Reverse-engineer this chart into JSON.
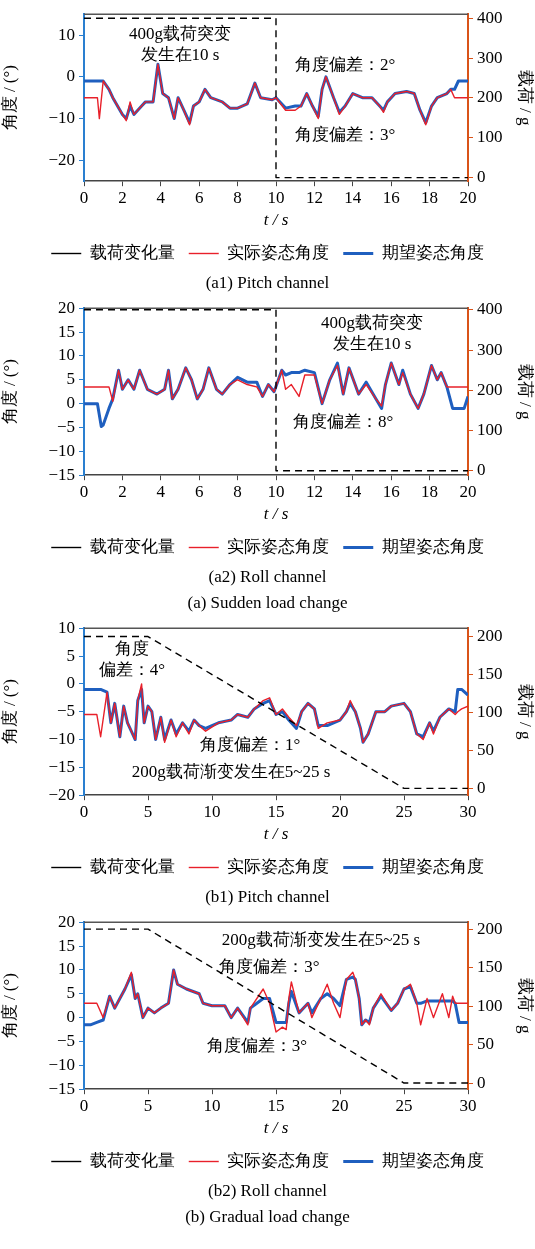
{
  "chart_data": [
    {
      "type": "line",
      "title": "(a1) Pitch channel",
      "xlabel": "t / s",
      "ylabel": "角度 / (°)",
      "y2label": "载荷 / g",
      "legend": "bottom",
      "xlim": [
        0,
        20
      ],
      "xticks": [
        0,
        2,
        4,
        6,
        8,
        10,
        12,
        14,
        16,
        18,
        20
      ],
      "ylim": [
        -25,
        15
      ],
      "yticks": [
        -20,
        -10,
        0,
        10
      ],
      "y2lim": [
        -9,
        410
      ],
      "y2ticks": [
        0,
        100,
        200,
        300,
        400
      ],
      "x": [
        0,
        0.7,
        0.8,
        1.0,
        1.3,
        1.5,
        2.0,
        2.2,
        2.4,
        2.6,
        3.0,
        3.2,
        3.6,
        3.85,
        4.1,
        4.4,
        4.7,
        4.9,
        5.2,
        5.5,
        5.7,
        6.0,
        6.3,
        6.6,
        7.2,
        7.6,
        8.0,
        8.5,
        8.9,
        9.2,
        9.8,
        10.0,
        10.5,
        11.0,
        11.3,
        11.6,
        11.9,
        12.2,
        12.4,
        12.6,
        13.0,
        13.3,
        13.6,
        14.0,
        14.5,
        15.0,
        15.4,
        15.6,
        15.8,
        16.2,
        16.8,
        17.2,
        17.5,
        17.8,
        18.1,
        18.4,
        18.9,
        19.1,
        19.3,
        19.5,
        20
      ],
      "series": [
        {
          "name": "期望姿态角度",
          "color": "#1f5fbf",
          "values": [
            -1,
            -1,
            -1,
            -1,
            -3,
            -5,
            -9,
            -10,
            -7,
            -9,
            -7,
            -6,
            -6,
            3,
            -4,
            -5,
            -10,
            -5,
            -8,
            -11,
            -7,
            -6,
            -3,
            -5,
            -6,
            -7.5,
            -7.5,
            -6.5,
            -1.5,
            -5,
            -5.5,
            -5,
            -7.5,
            -7,
            -7,
            -4,
            -7,
            -9.5,
            -3,
            0,
            -5,
            -8.5,
            -7,
            -4,
            -5,
            -5,
            -7,
            -8,
            -6,
            -4,
            -3.5,
            -4,
            -8,
            -11,
            -7,
            -5,
            -4,
            -3,
            -3,
            -1,
            -1
          ]
        },
        {
          "name": "实际姿态角度",
          "color": "#e8202a",
          "values": [
            -5,
            -5,
            -10,
            -1,
            -3,
            -5,
            -9,
            -10.5,
            -6,
            -9,
            -7,
            -6,
            -6,
            3,
            -4,
            -5,
            -10,
            -5,
            -8,
            -11.5,
            -7,
            -6,
            -3,
            -5,
            -6,
            -7.5,
            -7.5,
            -6.5,
            -1.5,
            -5,
            -5.5,
            -5,
            -8,
            -8,
            -7,
            -4,
            -7,
            -10,
            -3,
            0,
            -5,
            -9,
            -7,
            -4,
            -5,
            -5,
            -7,
            -8.5,
            -6,
            -4,
            -3.5,
            -4,
            -8,
            -11.5,
            -7,
            -5,
            -4,
            -3,
            -5,
            -5,
            -5
          ]
        },
        {
          "name": "载荷变化量",
          "color": "#000000",
          "axis": "y2",
          "line_style": "dashed",
          "x": [
            0,
            10,
            10,
            20
          ],
          "values": [
            400,
            400,
            0,
            0
          ]
        }
      ],
      "annotations": [
        "400g载荷突变发生在10 s",
        "角度偏差：2°",
        "角度偏差：3°"
      ]
    },
    {
      "type": "line",
      "title": "(a2) Roll channel",
      "xlabel": "t / s",
      "ylabel": "角度 / (°)",
      "y2label": "载荷 / g",
      "legend": "bottom",
      "xlim": [
        0,
        20
      ],
      "xticks": [
        0,
        2,
        4,
        6,
        8,
        10,
        12,
        14,
        16,
        18,
        20
      ],
      "ylim": [
        -15,
        20
      ],
      "yticks": [
        -15,
        -10,
        -5,
        0,
        5,
        10,
        15,
        20
      ],
      "y2lim": [
        -11,
        404
      ],
      "y2ticks": [
        0,
        100,
        200,
        300,
        400
      ],
      "x": [
        0,
        0.7,
        0.9,
        1.0,
        1.3,
        1.5,
        1.8,
        2.0,
        2.3,
        2.6,
        2.9,
        3.3,
        3.8,
        4.2,
        4.4,
        4.6,
        4.9,
        5.3,
        5.6,
        5.9,
        6.2,
        6.5,
        6.9,
        7.2,
        7.6,
        8.0,
        8.5,
        9.0,
        9.3,
        9.6,
        9.9,
        10.3,
        10.5,
        10.8,
        11.2,
        11.5,
        12.0,
        12.4,
        12.8,
        13.2,
        13.5,
        13.8,
        14.3,
        14.7,
        15.2,
        15.5,
        15.7,
        16.0,
        16.4,
        16.6,
        17.0,
        17.4,
        17.7,
        18.1,
        18.4,
        18.6,
        18.9,
        19.2,
        19.8,
        20
      ],
      "series": [
        {
          "name": "期望姿态角度",
          "color": "#1f5fbf",
          "values": [
            0,
            0,
            -4.8,
            -4.5,
            -1,
            1,
            7,
            3,
            5,
            3,
            7,
            3,
            2,
            3,
            7,
            1,
            3,
            7.5,
            5,
            1,
            3,
            7.5,
            3,
            2,
            4,
            5.5,
            4.5,
            4.5,
            1.5,
            4,
            2.5,
            7,
            6,
            6.5,
            6.5,
            7,
            6.5,
            0,
            5,
            8.5,
            2,
            7.5,
            2,
            4.5,
            1,
            -1,
            4,
            8.5,
            4,
            7,
            2,
            -1,
            2,
            8,
            5,
            6.5,
            3.5,
            -1,
            -1,
            1.5
          ]
        },
        {
          "name": "实际姿态角度",
          "color": "#e8202a",
          "values": [
            3.5,
            3.5,
            3.5,
            3.5,
            3.5,
            0.5,
            7,
            3,
            5,
            3,
            7,
            3,
            2,
            3,
            7,
            1,
            3,
            7.5,
            5,
            1,
            3,
            7.5,
            3,
            2,
            4,
            5,
            4,
            3.5,
            1.5,
            4,
            2.5,
            7,
            3,
            4,
            1.5,
            6,
            6,
            0,
            5,
            8,
            2,
            7.5,
            2,
            4,
            1,
            -0.5,
            4,
            8.5,
            4,
            6.5,
            2,
            -1,
            2,
            8,
            5,
            6.5,
            3.5,
            3.5,
            3.5,
            3.5
          ]
        },
        {
          "name": "载荷变化量",
          "color": "#000000",
          "axis": "y2",
          "line_style": "dashed",
          "x": [
            0,
            10,
            10,
            20
          ],
          "values": [
            400,
            400,
            0,
            0
          ]
        }
      ],
      "annotations": [
        "400g载荷突变发生在10 s",
        "角度偏差：8°",
        "(a) Sudden load change"
      ]
    },
    {
      "type": "line",
      "title": "(b1) Pitch channel",
      "xlabel": "t / s",
      "ylabel": "角度 / (°)",
      "y2label": "载荷 / g",
      "legend": "bottom",
      "xlim": [
        0,
        30
      ],
      "xticks": [
        0,
        5,
        10,
        15,
        20,
        25,
        30
      ],
      "ylim": [
        -20,
        10
      ],
      "yticks": [
        -20,
        -15,
        -10,
        -5,
        0,
        5,
        10
      ],
      "y2lim": [
        -9,
        211
      ],
      "y2ticks": [
        0,
        50,
        100,
        150,
        200
      ],
      "x": [
        0,
        1.0,
        1.3,
        1.8,
        2.1,
        2.4,
        2.8,
        3.1,
        3.4,
        4.0,
        4.2,
        4.5,
        4.7,
        5.0,
        5.3,
        5.6,
        6.0,
        6.3,
        6.8,
        7.2,
        7.7,
        8.2,
        8.6,
        9.0,
        9.5,
        10.5,
        11.5,
        12.0,
        12.8,
        13.3,
        14.0,
        14.5,
        15.0,
        15.5,
        16.0,
        16.6,
        17.0,
        17.5,
        18.0,
        18.3,
        19.0,
        20.0,
        20.5,
        20.8,
        21.2,
        21.6,
        21.8,
        22.2,
        22.8,
        23.5,
        24.0,
        25.0,
        25.5,
        26.0,
        26.5,
        27.0,
        27.3,
        27.8,
        28.5,
        29.0,
        29.2,
        29.5,
        30
      ],
      "series": [
        {
          "name": "期望姿态角度",
          "color": "#1f5fbf",
          "values": [
            -1,
            -1,
            -1,
            -1.5,
            -7,
            -3.5,
            -9.5,
            -4,
            -7,
            -10,
            -3,
            -1,
            -7,
            -4,
            -5,
            -10,
            -6,
            -10,
            -6.5,
            -9,
            -7,
            -8.5,
            -6.5,
            -7.5,
            -8,
            -7,
            -6.5,
            -5.5,
            -6,
            -4.5,
            -3.5,
            -3,
            -5.5,
            -5,
            -6.5,
            -8,
            -5,
            -3.5,
            -4.5,
            -7.5,
            -7.5,
            -6.5,
            -5,
            -3.5,
            -5,
            -8,
            -10.5,
            -9,
            -5,
            -5,
            -4,
            -3.5,
            -5,
            -9,
            -9.5,
            -7,
            -8.5,
            -6,
            -4.5,
            -5,
            -1,
            -1,
            -2
          ]
        },
        {
          "name": "实际姿态角度",
          "color": "#e8202a",
          "values": [
            -5.5,
            -5.5,
            -9.5,
            -1.5,
            -7,
            -3.5,
            -9.5,
            -4,
            -7,
            -10,
            -3,
            0,
            -7,
            -4,
            -5,
            -10,
            -6,
            -10.5,
            -6.5,
            -9.5,
            -7,
            -9,
            -6.5,
            -7.5,
            -8.5,
            -7,
            -6.5,
            -5.5,
            -6,
            -4.5,
            -3,
            -2.5,
            -5.5,
            -4.5,
            -6,
            -7.5,
            -5,
            -3.5,
            -4.5,
            -8,
            -7,
            -6.5,
            -5,
            -3,
            -5,
            -8,
            -10.5,
            -9,
            -5,
            -5,
            -4,
            -3.5,
            -5,
            -9,
            -10,
            -7,
            -9,
            -6,
            -4.5,
            -5.5,
            -5,
            -4.5,
            -4
          ]
        },
        {
          "name": "载荷变化量",
          "color": "#000000",
          "axis": "y2",
          "line_style": "dashed",
          "x": [
            0,
            5,
            25,
            30
          ],
          "values": [
            200,
            200,
            0,
            0
          ]
        }
      ],
      "annotations": [
        "角度偏差：4°",
        "角度偏差：1°",
        "200g载荷渐变发生在5~25 s"
      ]
    },
    {
      "type": "line",
      "title": "(b2) Roll channel",
      "xlabel": "t / s",
      "ylabel": "角度 / (°)",
      "y2label": "载荷 / g",
      "legend": "bottom",
      "xlim": [
        0,
        30
      ],
      "xticks": [
        0,
        5,
        10,
        15,
        20,
        25,
        30
      ],
      "ylim": [
        -15,
        20
      ],
      "yticks": [
        -15,
        -10,
        -5,
        0,
        5,
        10,
        15,
        20
      ],
      "y2lim": [
        -8,
        209
      ],
      "y2ticks": [
        0,
        50,
        100,
        150,
        200
      ],
      "x": [
        0,
        0.5,
        1.0,
        1.5,
        2.0,
        2.4,
        2.8,
        3.2,
        3.7,
        4.0,
        4.2,
        4.6,
        5.0,
        5.5,
        6.0,
        6.6,
        7.0,
        7.3,
        8.0,
        9.0,
        9.3,
        10.0,
        11.0,
        11.5,
        12.0,
        12.8,
        13.0,
        14.0,
        14.5,
        15.0,
        15.5,
        15.8,
        16.0,
        16.2,
        16.8,
        17.5,
        17.8,
        18.5,
        19.0,
        19.5,
        20.0,
        20.5,
        21.0,
        21.2,
        21.5,
        21.7,
        22.0,
        22.3,
        22.6,
        23.2,
        24.0,
        24.5,
        25.0,
        25.5,
        26.0,
        26.3,
        26.8,
        27.3,
        28.0,
        28.5,
        28.8,
        29.0,
        29.3,
        30
      ],
      "series": [
        {
          "name": "期望姿态角度",
          "color": "#1f5fbf",
          "values": [
            -1.5,
            -1.5,
            -1,
            -0.5,
            4.5,
            2,
            4,
            6,
            9,
            4,
            5,
            0,
            2,
            1,
            2,
            3,
            10,
            7,
            6,
            5,
            3,
            2.5,
            2.5,
            0,
            2,
            -1,
            2,
            4,
            4,
            -1,
            -1,
            -1,
            3,
            5.5,
            1,
            3,
            1,
            4,
            5,
            4,
            2.5,
            8,
            8.5,
            8,
            4,
            -1.5,
            -0.5,
            -1,
            2,
            4.5,
            1.5,
            3,
            6,
            6.5,
            3,
            3,
            3.5,
            3.5,
            3.5,
            3.5,
            3.5,
            3,
            -1,
            -1
          ]
        },
        {
          "name": "实际姿态角度",
          "color": "#e8202a",
          "values": [
            3,
            3,
            3,
            0,
            4.5,
            2,
            4,
            6,
            9.5,
            4,
            5,
            0,
            2,
            1,
            2,
            3,
            10,
            7,
            6,
            5,
            3,
            2.5,
            2.5,
            0,
            2,
            -1.5,
            2,
            6,
            3,
            -3,
            -2,
            -2.5,
            4,
            7.5,
            1,
            3,
            0,
            4,
            7,
            3,
            0,
            8,
            9.5,
            8,
            4,
            -1.5,
            -0.5,
            -1.5,
            2,
            5,
            1.5,
            3,
            6,
            7,
            3,
            -1.5,
            4,
            0,
            5,
            0,
            4.5,
            3,
            3,
            3
          ]
        },
        {
          "name": "载荷变化量",
          "color": "#000000",
          "axis": "y2",
          "line_style": "dashed",
          "x": [
            0,
            5,
            25,
            30
          ],
          "values": [
            200,
            200,
            0,
            0
          ]
        }
      ],
      "annotations": [
        "200g载荷渐变发生在5~25 s",
        "角度偏差：3°",
        "角度偏差：3°",
        "(b) Gradual load change"
      ]
    }
  ]
}
